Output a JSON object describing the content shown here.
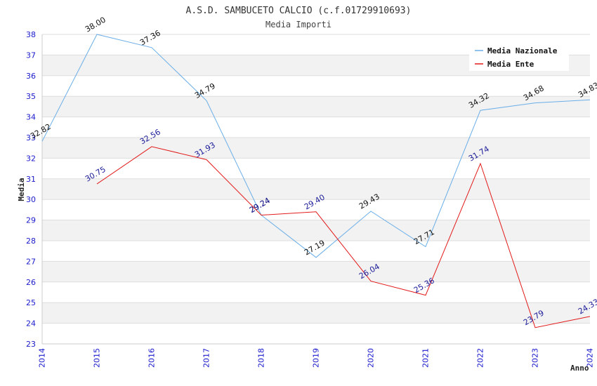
{
  "chart_data": {
    "type": "line",
    "title": "A.S.D. SAMBUCETO CALCIO (c.f.01729910693)",
    "subtitle": "Media Importi",
    "ylabel": "Media",
    "xlabel": "Anno",
    "ylim": [
      23,
      38
    ],
    "yticks": [
      "23",
      "24",
      "25",
      "26",
      "27",
      "28",
      "29",
      "30",
      "31",
      "32",
      "33",
      "34",
      "35",
      "36",
      "37",
      "38"
    ],
    "categories": [
      "2014",
      "2015",
      "2016",
      "2017",
      "2018",
      "2019",
      "2020",
      "2021",
      "2022",
      "2023",
      "2024"
    ],
    "legend_position": "top-right",
    "grid": true,
    "series": [
      {
        "name": "Media Nazionale",
        "color": "#6aaee8",
        "label_color": "#111111",
        "values": [
          32.82,
          38.0,
          37.36,
          34.79,
          29.24,
          27.19,
          29.43,
          27.71,
          34.32,
          34.68,
          34.83
        ],
        "labels": [
          "32.82",
          "38.00",
          "37.36",
          "34.79",
          "29.24",
          "27.19",
          "29.43",
          "27.71",
          "34.32",
          "34.68",
          "34.83"
        ]
      },
      {
        "name": "Media Ente",
        "color": "#e31a1a",
        "label_color": "#1a1a99",
        "values": [
          null,
          30.75,
          32.56,
          31.93,
          29.24,
          29.4,
          26.04,
          25.36,
          31.74,
          23.79,
          24.33
        ],
        "labels": [
          null,
          "30.75",
          "32.56",
          "31.93",
          "29.24",
          "29.40",
          "26.04",
          "25.36",
          "31.74",
          "23.79",
          "24.33"
        ]
      }
    ]
  }
}
